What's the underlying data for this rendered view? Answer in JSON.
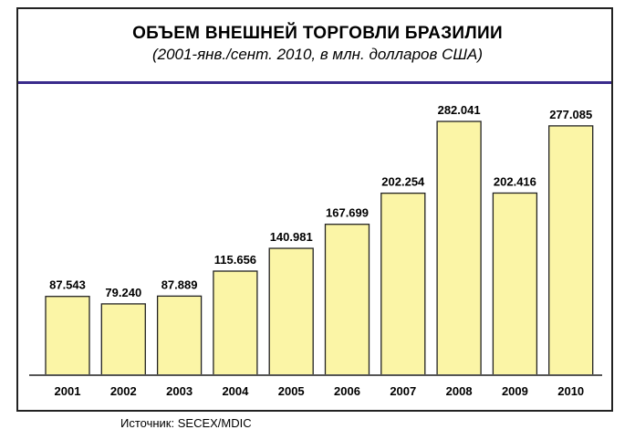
{
  "chart_data": {
    "type": "bar",
    "title": "ОБЪЕМ ВНЕШНЕЙ ТОРГОВЛИ БРАЗИЛИИ",
    "subtitle": "(2001-янв./сент. 2010, в млн. долларов США)",
    "categories": [
      "2001",
      "2002",
      "2003",
      "2004",
      "2005",
      "2006",
      "2007",
      "2008",
      "2009",
      "2010"
    ],
    "values": [
      87.543,
      79.24,
      87.889,
      115.656,
      140.981,
      167.699,
      202.254,
      282.041,
      202.416,
      277.085
    ],
    "labels": [
      "87.543",
      "79.240",
      "87.889",
      "115.656",
      "140.981",
      "167.699",
      "202.254",
      "282.041",
      "202.416",
      "277.085"
    ],
    "xlabel": "",
    "ylabel": "",
    "ylim": [
      0,
      290
    ],
    "grid": false,
    "bar_color": "#fbf5a6",
    "source": "Источник: SECEX/MDIC"
  }
}
